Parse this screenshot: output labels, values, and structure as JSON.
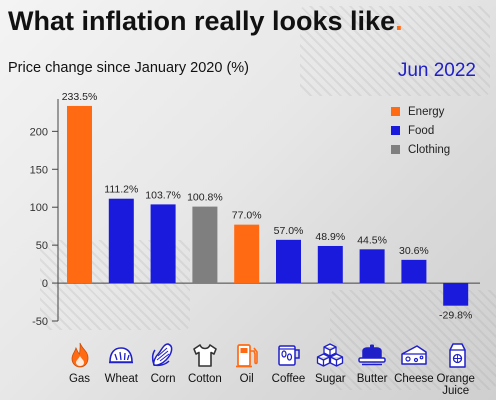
{
  "header": {
    "title": "What inflation really looks like",
    "title_dot": ".",
    "subtitle": "Price change since January 2020 (%)",
    "date": "Jun 2022"
  },
  "legend": [
    {
      "label": "Energy",
      "color": "#ff6a13"
    },
    {
      "label": "Food",
      "color": "#1a1add"
    },
    {
      "label": "Clothing",
      "color": "#7f7f7f"
    }
  ],
  "chart_data": {
    "type": "bar",
    "title": "What inflation really looks like.",
    "subtitle": "Price change since January 2020 (%)",
    "categories": [
      "Gas",
      "Wheat",
      "Corn",
      "Cotton",
      "Oil",
      "Coffee",
      "Sugar",
      "Butter",
      "Cheese",
      "Orange Juice"
    ],
    "values": [
      233.5,
      111.2,
      103.7,
      100.8,
      77.0,
      57.0,
      48.9,
      44.5,
      30.6,
      -29.8
    ],
    "value_labels": [
      "233.5%",
      "111.2%",
      "103.7%",
      "100.8%",
      "77.0%",
      "57.0%",
      "48.9%",
      "44.5%",
      "30.6%",
      "-29.8%"
    ],
    "groups": [
      "Energy",
      "Food",
      "Food",
      "Clothing",
      "Energy",
      "Food",
      "Food",
      "Food",
      "Food",
      "Food"
    ],
    "yticks": [
      -50,
      0,
      50,
      100,
      150,
      200
    ],
    "ylim": [
      -50,
      240
    ],
    "grid": false,
    "legend_position": "top-right"
  },
  "icons": [
    "flame-icon",
    "bread-icon",
    "corn-icon",
    "tshirt-icon",
    "fuel-pump-icon",
    "coffee-icon",
    "sugar-cubes-icon",
    "butter-dish-icon",
    "cheese-icon",
    "juice-carton-icon"
  ]
}
